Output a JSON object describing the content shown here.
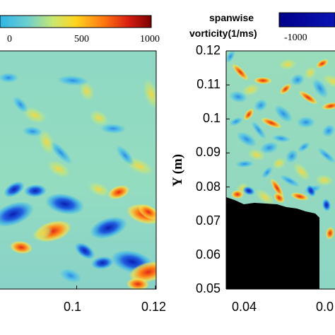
{
  "chart_data": [
    {
      "type": "heatmap",
      "panel": "left",
      "colorbar": {
        "ticks": [
          "0",
          "500",
          "1000"
        ],
        "range": [
          -1000,
          1000
        ],
        "colormap": "jet"
      },
      "x_ticks": [
        "0.1",
        "0.12"
      ],
      "xlim_visible": [
        0.08,
        0.12
      ],
      "features": [
        {
          "kind": "negative-blob",
          "x": 0.084,
          "y": 0.072,
          "value": -900
        },
        {
          "kind": "negative-blob",
          "x": 0.097,
          "y": 0.075,
          "value": -700
        },
        {
          "kind": "negative-blob",
          "x": 0.108,
          "y": 0.068,
          "value": -650
        },
        {
          "kind": "negative-blob",
          "x": 0.114,
          "y": 0.058,
          "value": -900
        },
        {
          "kind": "positive-blob",
          "x": 0.094,
          "y": 0.067,
          "value": 650
        },
        {
          "kind": "positive-blob",
          "x": 0.117,
          "y": 0.072,
          "value": 550
        },
        {
          "kind": "positive-blob",
          "x": 0.118,
          "y": 0.055,
          "value": 700
        }
      ]
    },
    {
      "type": "heatmap",
      "panel": "right",
      "colorbar": {
        "label_line1": "spanwise",
        "label_line2": "vorticity(1/ms)",
        "ticks": [
          "-1000"
        ],
        "range": [
          -1000,
          1000
        ],
        "colormap": "jet"
      },
      "ylabel": "Y (m)",
      "y_ticks": [
        "0.12",
        "0.11",
        "0.1",
        "0.09",
        "0.08",
        "0.07",
        "0.06",
        "0.05"
      ],
      "ylim": [
        0.05,
        0.12
      ],
      "x_ticks": [
        "0.04",
        "0.0"
      ],
      "xlim_visible": [
        0.035,
        0.06
      ],
      "obstacle_color": "#000000"
    }
  ],
  "colors": {
    "background_field": "#8fd6c0",
    "negative": "#1a2ec8",
    "positive": "#e6301a",
    "obstacle": "#000000"
  }
}
